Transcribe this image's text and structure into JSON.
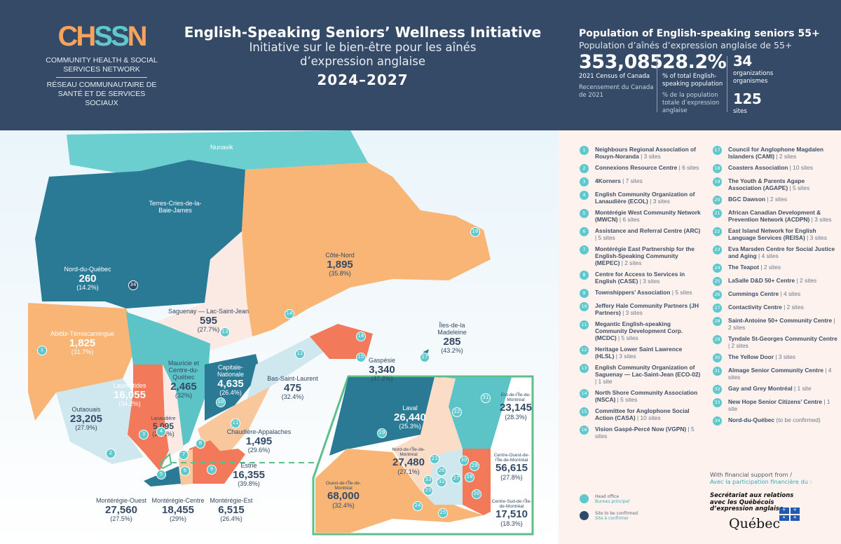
{
  "header": {
    "logo": {
      "mark": "CHSSN",
      "name_en": "COMMUNITY HEALTH & SOCIAL SERVICES NETWORK",
      "name_fr": "RÉSEAU COMMUNAUTAIRE DE SANTÉ ET DE SERVICES SOCIAUX"
    },
    "title_en": "English-Speaking Seniors’ Wellness Initiative",
    "title_fr_1": "Initiative sur le bien-être pour les aînés",
    "title_fr_2": "d’expression anglaise",
    "years": "2024–2027"
  },
  "stats": {
    "heading_en": "Population of English-speaking seniors 55+",
    "heading_fr": "Population d’aînés d’expression anglaise de 55+",
    "population": {
      "value": "353,085",
      "label_en": "2021 Census of Canada",
      "label_fr": "Recensement du Canada de 2021"
    },
    "percent": {
      "value": "28.2%",
      "label_en": "% of total English-speaking population",
      "label_fr": "% de la population totale d’expression anglaise"
    },
    "organizations": {
      "value": "34",
      "label_en": "organizations",
      "label_fr": "organismes"
    },
    "sites": {
      "value": "125",
      "label": "sites"
    }
  },
  "regions": [
    {
      "name": "Nunavik"
    },
    {
      "name": "Terres-Cries-de-la-Baie-James"
    },
    {
      "name": "Nord-du-Québec",
      "value": "260",
      "pct": "(14.2%)"
    },
    {
      "name": "Côte-Nord",
      "value": "1,895",
      "pct": "(35.8%)"
    },
    {
      "name": "Saguenay — Lac-Saint-Jean",
      "value": "595",
      "pct": "(27.7%)"
    },
    {
      "name": "Abitibi-Témiscamingue",
      "value": "1,825",
      "pct": "(31.7%)"
    },
    {
      "name": "Îles-de-la Madeleine",
      "value": "285",
      "pct": "(43.2%)"
    },
    {
      "name": "Gaspésie",
      "value": "3,340",
      "pct": "(47.2%)"
    },
    {
      "name": "Bas-Saint-Laurent",
      "value": "475",
      "pct": "(32.4%)"
    },
    {
      "name": "Mauricie et Centre-du-Québec",
      "value": "2,465",
      "pct": "(32%)"
    },
    {
      "name": "Capitale-Nationale",
      "value": "4,635",
      "pct": "(26.4%)"
    },
    {
      "name": "Laurentides",
      "value": "16,055",
      "pct": "(34.2%)"
    },
    {
      "name": "Lanaudière",
      "value": "5,095",
      "pct": "(29.1%)"
    },
    {
      "name": "Outaouais",
      "value": "23,205",
      "pct": "(27.9%)"
    },
    {
      "name": "Chaudière-Appalaches",
      "value": "1,495",
      "pct": "(29.6%)"
    },
    {
      "name": "Estrie",
      "value": "16,355",
      "pct": "(39.8%)"
    },
    {
      "name": "Montérégie-Ouest",
      "value": "27,560",
      "pct": "(27.5%)"
    },
    {
      "name": "Montérégie-Centre",
      "value": "18,455",
      "pct": "(29%)"
    },
    {
      "name": "Montérégie-Est",
      "value": "6,515",
      "pct": "(26.4%)"
    },
    {
      "name": "Laval",
      "value": "26,440",
      "pct": "(25.3%)"
    },
    {
      "name": "Est-de-l’Île-de-Montréal",
      "value": "23,145",
      "pct": "(28.3%)"
    },
    {
      "name": "Nord-de-l’Île-de-Montréal",
      "value": "27,480",
      "pct": "(27.1%)"
    },
    {
      "name": "Centre-Ouest-de-l’Île-de-Montréal",
      "value": "56,615",
      "pct": "(27.8%)"
    },
    {
      "name": "Ouest-de-l’Île-de-Montréal",
      "value": "68,000",
      "pct": "(32.4%)"
    },
    {
      "name": "Centre-Sud-de-l’Île-de-Montréal",
      "value": "17,510",
      "pct": "(18.3%)"
    }
  ],
  "markers": [
    "1",
    "2",
    "3",
    "4",
    "5",
    "6",
    "7",
    "8",
    "9",
    "10",
    "11",
    "12",
    "13",
    "14",
    "15",
    "16",
    "17",
    "18",
    "19",
    "20",
    "21",
    "22",
    "23",
    "24",
    "25",
    "26",
    "27",
    "28",
    "29",
    "30",
    "31",
    "32",
    "33",
    "34"
  ],
  "organizations": [
    {
      "num": "1",
      "name": "Neighbours Regional Association of Rouyn-Noranda",
      "sites": "| 3 sites"
    },
    {
      "num": "2",
      "name": "Connexions Resource Centre",
      "sites": "| 6 sites"
    },
    {
      "num": "3",
      "name": "4Korners",
      "sites": "| 7 sites"
    },
    {
      "num": "4",
      "name": "English Community Organization of Lanaudière (ECOL)",
      "sites": "| 3 sites"
    },
    {
      "num": "5",
      "name": "Montérégie West Community Network (MWCN)",
      "sites": "| 6 sites"
    },
    {
      "num": "6",
      "name": "Assistance and Referral Centre (ARC)",
      "sites": "| 5 sites"
    },
    {
      "num": "7",
      "name": "Montérégie East Partnership for the English-Speaking Community (MEPEC)",
      "sites": "| 2 sites"
    },
    {
      "num": "8",
      "name": "Centre for Access to Services in English (CASE)",
      "sites": "| 3 sites"
    },
    {
      "num": "9",
      "name": "Townshippers’ Association",
      "sites": "| 5 sites"
    },
    {
      "num": "10",
      "name": "Jeffery Hale Community Partners (JH Partners)",
      "sites": "| 3 sites"
    },
    {
      "num": "11",
      "name": "Megantic English-speaking Community Development Corp. (MCDC)",
      "sites": "| 5 sites"
    },
    {
      "num": "12",
      "name": "Heritage Lower Saint Lawrence (HLSL)",
      "sites": "| 3 sites"
    },
    {
      "num": "13",
      "name": "English Community Organization of Saguenay — Lac-Saint-Jean (ECO-02)",
      "sites": "| 1 site"
    },
    {
      "num": "14",
      "name": "North Shore Community Association (NSCA)",
      "sites": "| 5 sites"
    },
    {
      "num": "15",
      "name": "Committee for Anglophone Social Action (CASA)",
      "sites": "| 10 sites"
    },
    {
      "num": "16",
      "name": "Vision Gaspé-Percé Now (VGPN)",
      "sites": "| 5 sites"
    },
    {
      "num": "17",
      "name": "Council for Anglophone Magdalen Islanders (CAMI)",
      "sites": "| 2 sites"
    },
    {
      "num": "18",
      "name": "Coasters Association",
      "sites": "| 10 sites"
    },
    {
      "num": "19",
      "name": "The Youth & Parents Agape Association (AGAPE)",
      "sites": "| 5 sites"
    },
    {
      "num": "20",
      "name": "BGC Dawson",
      "sites": "| 2 sites"
    },
    {
      "num": "21",
      "name": "African Canadian Development & Prevention Network (ACDPN)",
      "sites": "| 3 sites"
    },
    {
      "num": "22",
      "name": "East Island Network for English Language Services (REISA)",
      "sites": "| 3 sites"
    },
    {
      "num": "23",
      "name": "Eva Marsden Centre for Social Justice and Aging",
      "sites": "| 4 sites"
    },
    {
      "num": "24",
      "name": "The Teapot",
      "sites": "| 2 sites"
    },
    {
      "num": "25",
      "name": "LaSalle D&D 50+ Centre",
      "sites": "| 2 sites"
    },
    {
      "num": "26",
      "name": "Cummings Centre",
      "sites": "| 4 sites"
    },
    {
      "num": "27",
      "name": "Contactivity Centre",
      "sites": "| 2 sites"
    },
    {
      "num": "28",
      "name": "Saint-Antoine 50+ Community Centre",
      "sites": "| 2 sites"
    },
    {
      "num": "29",
      "name": "Tyndale St-Georges Community Centre",
      "sites": "| 2 sites"
    },
    {
      "num": "30",
      "name": "The Yellow Door",
      "sites": "| 3 sites"
    },
    {
      "num": "31",
      "name": "Almage Senior Community Centre",
      "sites": "| 4 sites"
    },
    {
      "num": "32",
      "name": "Gay and Grey Montréal",
      "sites": "| 1 site"
    },
    {
      "num": "33",
      "name": "New Hope Senior Citizens’ Centre",
      "sites": "| 1 site"
    },
    {
      "num": "34",
      "name": "Nord-du-Québec",
      "sites": "(to be confirmed)"
    }
  ],
  "legend": {
    "head_office_en": "Head office",
    "head_office_fr": "Bureau principal",
    "tbc_en": "Site to be confirmed",
    "tbc_fr": "Site à confirmer"
  },
  "support": {
    "label_en": "With financial support from /",
    "label_fr": "Avec la participation financière du :",
    "secretariat_1": "Secrétariat aux relations",
    "secretariat_2": "avec les Québécois",
    "secretariat_3": "d’expression anglaise",
    "quebec": "Québec"
  },
  "colors": {
    "navy": "#344a66",
    "teal": "#5fc8cc",
    "dark_teal": "#2a7a96",
    "orange": "#f9b575",
    "coral": "#f27a5b",
    "pale": "#fbe9e4",
    "light_blue": "#cfe7ee",
    "inset_border": "#5dbf8a"
  }
}
